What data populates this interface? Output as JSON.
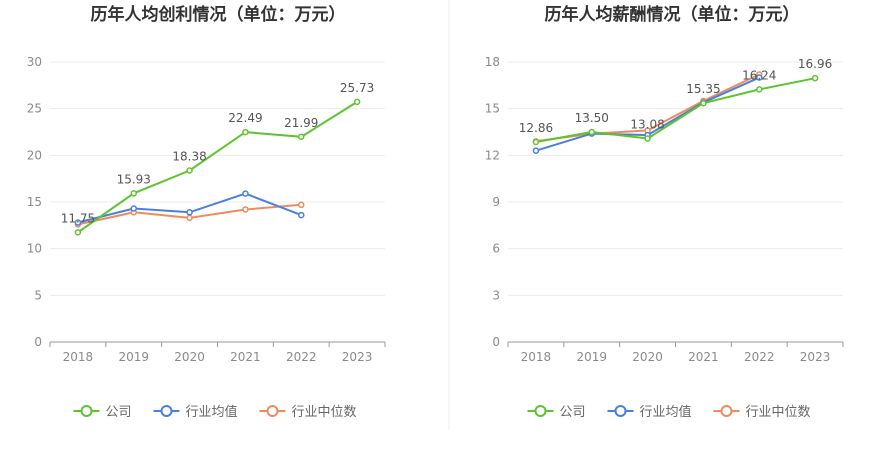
{
  "chart_data": [
    {
      "type": "line",
      "title": "历年人均创利情况（单位：万元）",
      "xlabel": "",
      "ylabel": "",
      "categories": [
        "2018",
        "2019",
        "2020",
        "2021",
        "2022",
        "2023"
      ],
      "ylim": [
        0,
        30
      ],
      "yticks": [
        0,
        5,
        10,
        15,
        20,
        25,
        30
      ],
      "grid": true,
      "legend": "bottom",
      "series": [
        {
          "name": "公司",
          "color": "#5cc52d",
          "values": [
            11.75,
            15.93,
            18.38,
            22.49,
            21.99,
            25.73
          ],
          "labels": [
            "11.75",
            "15.93",
            "18.38",
            "22.49",
            "21.99",
            "25.73"
          ]
        },
        {
          "name": "行业均值",
          "color": "#4a7fe0",
          "values": [
            12.8,
            14.3,
            13.9,
            15.9,
            13.6,
            null
          ]
        },
        {
          "name": "行业中位数",
          "color": "#f08a5d",
          "values": [
            12.6,
            13.9,
            13.3,
            14.2,
            14.7,
            null
          ]
        }
      ]
    },
    {
      "type": "line",
      "title": "历年人均薪酬情况（单位：万元）",
      "xlabel": "",
      "ylabel": "",
      "categories": [
        "2018",
        "2019",
        "2020",
        "2021",
        "2022",
        "2023"
      ],
      "ylim": [
        0,
        18
      ],
      "yticks": [
        0,
        3,
        6,
        9,
        12,
        15,
        18
      ],
      "grid": true,
      "legend": "bottom",
      "series": [
        {
          "name": "公司",
          "color": "#5cc52d",
          "values": [
            12.86,
            13.5,
            13.08,
            15.35,
            16.24,
            16.96
          ],
          "labels": [
            "12.86",
            "13.50",
            "13.08",
            "15.35",
            "16.24",
            "16.96"
          ]
        },
        {
          "name": "行业均值",
          "color": "#4a7fe0",
          "values": [
            12.3,
            13.4,
            13.3,
            15.4,
            17.0,
            null
          ]
        },
        {
          "name": "行业中位数",
          "color": "#f08a5d",
          "values": [
            12.9,
            13.4,
            13.6,
            15.5,
            17.2,
            null
          ]
        }
      ]
    }
  ]
}
